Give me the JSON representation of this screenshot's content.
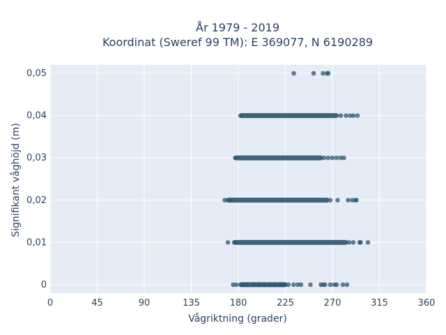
{
  "chart_data": {
    "type": "scatter",
    "title": "År 1979 - 2019",
    "subtitle": "Koordinat (Sweref 99 TM): E 369077, N 6190289",
    "xlabel": "Vågriktning (grader)",
    "ylabel": "Signifikant våghöjd (m)",
    "xlim": [
      0,
      360
    ],
    "ylim": [
      -0.002,
      0.052
    ],
    "x_ticks": [
      0,
      45,
      90,
      135,
      180,
      225,
      270,
      315,
      360
    ],
    "x_tick_labels": [
      "0",
      "45",
      "90",
      "135",
      "180",
      "225",
      "270",
      "315",
      "360"
    ],
    "y_ticks": [
      0,
      0.01,
      0.02,
      0.03,
      0.04,
      0.05
    ],
    "y_tick_labels": [
      "0",
      "0,01",
      "0,02",
      "0,03",
      "0,04",
      "0,05"
    ],
    "grid": true,
    "legend": false,
    "colors": {
      "marker": "#2f566e",
      "plot_bg": "#e5ecf6",
      "grid": "#ffffff"
    },
    "series": [
      {
        "bands": [
          {
            "y": 0.0,
            "x_dense_range": [
              183,
              225
            ],
            "x_points": [
              175,
              178,
              182,
              185,
              188,
              195,
              200,
              205,
              210,
              215,
              220,
              224,
              228,
              233,
              237,
              240,
              249,
              259,
              261,
              263,
              268,
              272,
              274,
              280,
              284
            ]
          },
          {
            "y": 0.01,
            "x_dense_range": [
              177,
              283
            ],
            "x_points": [
              170,
              176,
              286,
              290,
              296,
              297,
              304
            ]
          },
          {
            "y": 0.02,
            "x_dense_range": [
              170,
              265
            ],
            "x_points": [
              167,
              172,
              268,
              275,
              285,
              289,
              292,
              293
            ]
          },
          {
            "y": 0.03,
            "x_dense_range": [
              178,
              259
            ],
            "x_points": [
              177,
              262,
              266,
              270,
              274,
              278,
              281
            ]
          },
          {
            "y": 0.04,
            "x_dense_range": [
              183,
              274
            ],
            "x_points": [
              182,
              278,
              283,
              287,
              290,
              294
            ]
          },
          {
            "y": 0.05,
            "x_dense_range": null,
            "x_points": [
              233,
              252,
              261,
              265,
              266
            ]
          }
        ]
      }
    ]
  }
}
